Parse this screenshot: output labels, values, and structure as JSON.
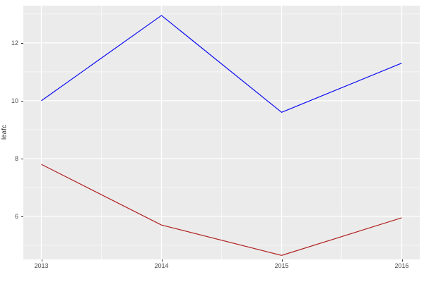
{
  "figure": {
    "background": "#FFFFFF",
    "panel_background": "#EBEBEB",
    "grid_major_color": "#FFFFFF",
    "grid_minor_color": "#F6F6F6",
    "tick_mark_color": "#333333",
    "tick_label_color": "#4D4D4D",
    "axis_title_color": "#1A1A1A"
  },
  "chart_data": {
    "type": "line",
    "title": "",
    "xlabel": "",
    "ylabel": "leafc",
    "grid": true,
    "legend_position": "none",
    "x": [
      2013,
      2014,
      2015,
      2016
    ],
    "x_tick_labels": [
      "2013",
      "2014",
      "2015",
      "2016"
    ],
    "x_minor_breaks": [
      2013.5,
      2014.5,
      2015.5
    ],
    "y_ticks": [
      6,
      8,
      10,
      12
    ],
    "y_tick_labels": [
      "6",
      "8",
      "10",
      "12"
    ],
    "y_minor_breaks": [
      5,
      7,
      9,
      11,
      13
    ],
    "xlim": [
      2012.85,
      2016.15
    ],
    "ylim": [
      4.51,
      13.29
    ],
    "series": [
      {
        "name": "blue-line",
        "color": "#0B0BF2",
        "values": [
          10.0,
          12.95,
          9.6,
          11.3
        ]
      },
      {
        "name": "red-line",
        "color": "#B22222",
        "values": [
          7.8,
          5.7,
          4.65,
          5.95
        ]
      }
    ]
  }
}
